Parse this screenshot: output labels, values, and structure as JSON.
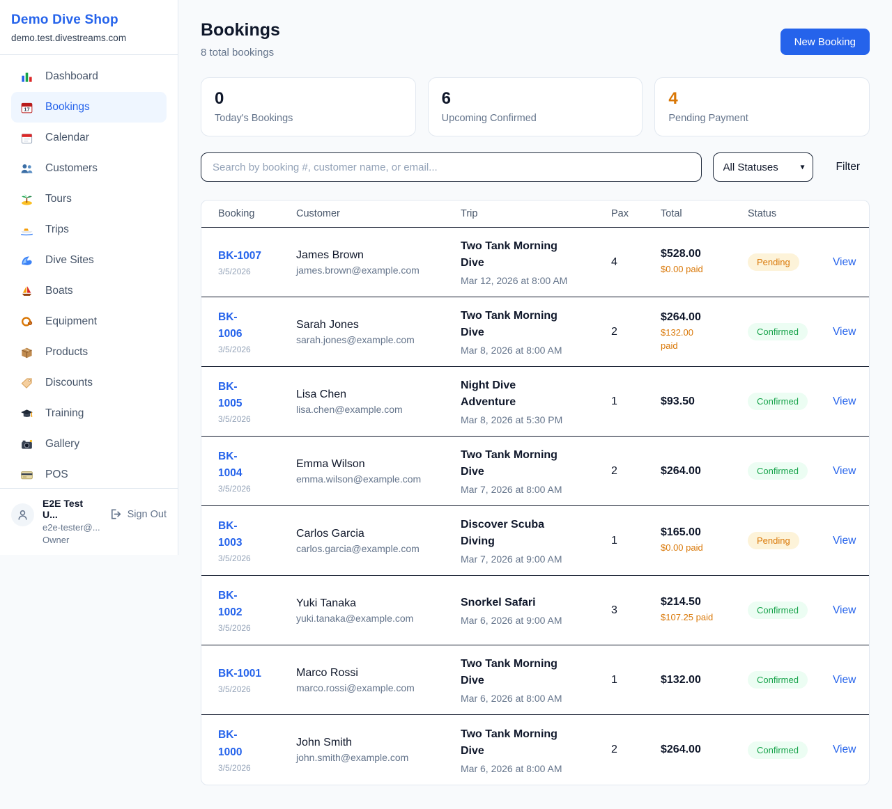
{
  "sidebar": {
    "shop_name": "Demo Dive Shop",
    "shop_domain": "demo.test.divestreams.com",
    "active_item": "Bookings",
    "items": [
      {
        "label": "Dashboard",
        "icon": "bar-chart-icon"
      },
      {
        "label": "Bookings",
        "icon": "calendar-date-icon"
      },
      {
        "label": "Calendar",
        "icon": "calendar-icon"
      },
      {
        "label": "Customers",
        "icon": "users-icon"
      },
      {
        "label": "Tours",
        "icon": "island-icon"
      },
      {
        "label": "Trips",
        "icon": "speedboat-icon"
      },
      {
        "label": "Dive Sites",
        "icon": "wave-icon"
      },
      {
        "label": "Boats",
        "icon": "sailboat-icon"
      },
      {
        "label": "Equipment",
        "icon": "diving-mask-icon"
      },
      {
        "label": "Products",
        "icon": "package-icon"
      },
      {
        "label": "Discounts",
        "icon": "tag-icon"
      },
      {
        "label": "Training",
        "icon": "graduation-cap-icon"
      },
      {
        "label": "Gallery",
        "icon": "camera-icon"
      },
      {
        "label": "POS",
        "icon": "credit-card-icon"
      }
    ],
    "user": {
      "name": "E2E Test U...",
      "email": "e2e-tester@...",
      "role": "Owner",
      "sign_out_label": "Sign Out"
    }
  },
  "header": {
    "title": "Bookings",
    "subtitle": "8 total bookings",
    "new_booking_label": "New Booking"
  },
  "stats": [
    {
      "value": "0",
      "label": "Today's Bookings",
      "value_color": "#0f172a"
    },
    {
      "value": "6",
      "label": "Upcoming Confirmed",
      "value_color": "#0f172a"
    },
    {
      "value": "4",
      "label": "Pending Payment",
      "value_color": "#d97706"
    }
  ],
  "filters": {
    "search_placeholder": "Search by booking #, customer name, or email...",
    "status_selected": "All Statuses",
    "chevron_icon": "▾",
    "filter_label": "Filter"
  },
  "table": {
    "columns": [
      "Booking",
      "Customer",
      "Trip",
      "Pax",
      "Total",
      "Status"
    ],
    "view_label": "View",
    "rows": [
      {
        "booking_id": "BK-1007",
        "booking_date": "3/5/2026",
        "customer_name": "James Brown",
        "customer_email": "james.brown@example.com",
        "trip_name": "Two Tank Morning Dive",
        "trip_datetime": "Mar 12, 2026 at 8:00 AM",
        "pax": "4",
        "total": "$528.00",
        "paid": "$0.00 paid",
        "status": "Pending"
      },
      {
        "booking_id": "BK-\n1006",
        "booking_date": "3/5/2026",
        "customer_name": "Sarah Jones",
        "customer_email": "sarah.jones@example.com",
        "trip_name": "Two Tank Morning Dive",
        "trip_datetime": "Mar 8, 2026 at 8:00 AM",
        "pax": "2",
        "total": "$264.00",
        "paid": "$132.00\npaid",
        "status": "Confirmed"
      },
      {
        "booking_id": "BK-\n1005",
        "booking_date": "3/5/2026",
        "customer_name": "Lisa Chen",
        "customer_email": "lisa.chen@example.com",
        "trip_name": "Night Dive Adventure",
        "trip_datetime": "Mar 8, 2026 at 5:30 PM",
        "pax": "1",
        "total": "$93.50",
        "paid": "",
        "status": "Confirmed"
      },
      {
        "booking_id": "BK-\n1004",
        "booking_date": "3/5/2026",
        "customer_name": "Emma Wilson",
        "customer_email": "emma.wilson@example.com",
        "trip_name": "Two Tank Morning Dive",
        "trip_datetime": "Mar 7, 2026 at 8:00 AM",
        "pax": "2",
        "total": "$264.00",
        "paid": "",
        "status": "Confirmed"
      },
      {
        "booking_id": "BK-\n1003",
        "booking_date": "3/5/2026",
        "customer_name": "Carlos Garcia",
        "customer_email": "carlos.garcia@example.com",
        "trip_name": "Discover Scuba Diving",
        "trip_datetime": "Mar 7, 2026 at 9:00 AM",
        "pax": "1",
        "total": "$165.00",
        "paid": "$0.00 paid",
        "status": "Pending"
      },
      {
        "booking_id": "BK-\n1002",
        "booking_date": "3/5/2026",
        "customer_name": "Yuki Tanaka",
        "customer_email": "yuki.tanaka@example.com",
        "trip_name": "Snorkel Safari",
        "trip_datetime": "Mar 6, 2026 at 9:00 AM",
        "pax": "3",
        "total": "$214.50",
        "paid": "$107.25 paid",
        "status": "Confirmed"
      },
      {
        "booking_id": "BK-1001",
        "booking_date": "3/5/2026",
        "customer_name": "Marco Rossi",
        "customer_email": "marco.rossi@example.com",
        "trip_name": "Two Tank Morning Dive",
        "trip_datetime": "Mar 6, 2026 at 8:00 AM",
        "pax": "1",
        "total": "$132.00",
        "paid": "",
        "status": "Confirmed"
      },
      {
        "booking_id": "BK-\n1000",
        "booking_date": "3/5/2026",
        "customer_name": "John Smith",
        "customer_email": "john.smith@example.com",
        "trip_name": "Two Tank Morning Dive",
        "trip_datetime": "Mar 6, 2026 at 8:00 AM",
        "pax": "2",
        "total": "$264.00",
        "paid": "",
        "status": "Confirmed"
      }
    ]
  },
  "colors": {
    "accent_blue": "#2563eb",
    "pending_text": "#d97706",
    "pending_bg": "#fdf3d9",
    "confirmed_text": "#16a34a",
    "confirmed_bg": "#ecfdf3",
    "page_bg": "#f8fafc",
    "divider_dark": "#0f172a",
    "border_light": "#e2e8f0"
  }
}
